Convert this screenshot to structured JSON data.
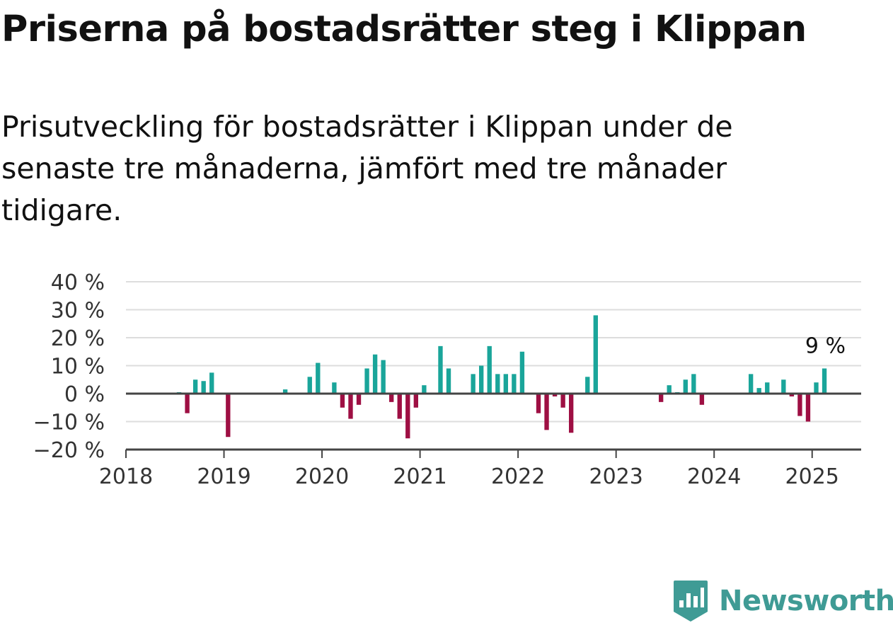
{
  "title": "Priserna på bostadsrätter steg i Klippan",
  "subtitle": "Prisutveckling för bostadsrätter i Klippan under de senaste tre månaderna, jämfört med tre månader tidigare.",
  "brand": {
    "name": "Newsworthy",
    "color": "#3f9b95"
  },
  "colors": {
    "positive": "#1aa59a",
    "negative": "#9e0f43",
    "grid": "#dddddd",
    "axis": "#444444"
  },
  "chart_data": {
    "type": "bar",
    "title": "Priserna på bostadsrätter steg i Klippan",
    "subtitle": "Prisutveckling för bostadsrätter i Klippan under de senaste tre månaderna, jämfört med tre månader tidigare.",
    "xlabel": "",
    "ylabel": "",
    "ylim": [
      -20,
      40
    ],
    "xlim": [
      "2018-01",
      "2025-07"
    ],
    "grid": true,
    "y_ticks": [
      {
        "value": -20,
        "label": "−20 %"
      },
      {
        "value": -10,
        "label": "−10 %"
      },
      {
        "value": 0,
        "label": "0 %"
      },
      {
        "value": 10,
        "label": "10 %"
      },
      {
        "value": 20,
        "label": "20 %"
      },
      {
        "value": 30,
        "label": "30 %"
      },
      {
        "value": 40,
        "label": "40 %"
      }
    ],
    "x_ticks": [
      {
        "value": "2018-01",
        "label": "2018"
      },
      {
        "value": "2019-01",
        "label": "2019"
      },
      {
        "value": "2020-01",
        "label": "2020"
      },
      {
        "value": "2021-01",
        "label": "2021"
      },
      {
        "value": "2022-01",
        "label": "2022"
      },
      {
        "value": "2023-01",
        "label": "2023"
      },
      {
        "value": "2024-01",
        "label": "2024"
      },
      {
        "value": "2025-01",
        "label": "2025"
      }
    ],
    "annotation": {
      "date": "2025-02",
      "value": 9,
      "label": "9 %"
    },
    "points": [
      {
        "date": "2018-07",
        "value": 0.5
      },
      {
        "date": "2018-08",
        "value": -7
      },
      {
        "date": "2018-09",
        "value": 5
      },
      {
        "date": "2018-10",
        "value": 4.5
      },
      {
        "date": "2018-11",
        "value": 7.5
      },
      {
        "date": "2019-01",
        "value": -15.5
      },
      {
        "date": "2019-08",
        "value": 1.5
      },
      {
        "date": "2019-11",
        "value": 6
      },
      {
        "date": "2019-12",
        "value": 11
      },
      {
        "date": "2020-02",
        "value": 4
      },
      {
        "date": "2020-03",
        "value": -5
      },
      {
        "date": "2020-04",
        "value": -9
      },
      {
        "date": "2020-05",
        "value": -4
      },
      {
        "date": "2020-06",
        "value": 9
      },
      {
        "date": "2020-07",
        "value": 14
      },
      {
        "date": "2020-08",
        "value": 12
      },
      {
        "date": "2020-09",
        "value": -3
      },
      {
        "date": "2020-10",
        "value": -9
      },
      {
        "date": "2020-11",
        "value": -16
      },
      {
        "date": "2020-12",
        "value": -5
      },
      {
        "date": "2021-01",
        "value": 3
      },
      {
        "date": "2021-03",
        "value": 17
      },
      {
        "date": "2021-04",
        "value": 9
      },
      {
        "date": "2021-07",
        "value": 7
      },
      {
        "date": "2021-08",
        "value": 10
      },
      {
        "date": "2021-09",
        "value": 17
      },
      {
        "date": "2021-10",
        "value": 7
      },
      {
        "date": "2021-11",
        "value": 7
      },
      {
        "date": "2021-12",
        "value": 7
      },
      {
        "date": "2022-01",
        "value": 15
      },
      {
        "date": "2022-03",
        "value": -7
      },
      {
        "date": "2022-04",
        "value": -13
      },
      {
        "date": "2022-05",
        "value": -1
      },
      {
        "date": "2022-06",
        "value": -5
      },
      {
        "date": "2022-07",
        "value": -14
      },
      {
        "date": "2022-09",
        "value": 6
      },
      {
        "date": "2022-10",
        "value": 28
      },
      {
        "date": "2023-06",
        "value": -3
      },
      {
        "date": "2023-07",
        "value": 3
      },
      {
        "date": "2023-08",
        "value": 0.5
      },
      {
        "date": "2023-09",
        "value": 5
      },
      {
        "date": "2023-10",
        "value": 7
      },
      {
        "date": "2023-11",
        "value": -4
      },
      {
        "date": "2024-05",
        "value": 7
      },
      {
        "date": "2024-06",
        "value": 2
      },
      {
        "date": "2024-07",
        "value": 4
      },
      {
        "date": "2024-09",
        "value": 5
      },
      {
        "date": "2024-10",
        "value": -1
      },
      {
        "date": "2024-11",
        "value": -8
      },
      {
        "date": "2024-12",
        "value": -10
      },
      {
        "date": "2025-01",
        "value": 4
      },
      {
        "date": "2025-02",
        "value": 9
      }
    ]
  }
}
